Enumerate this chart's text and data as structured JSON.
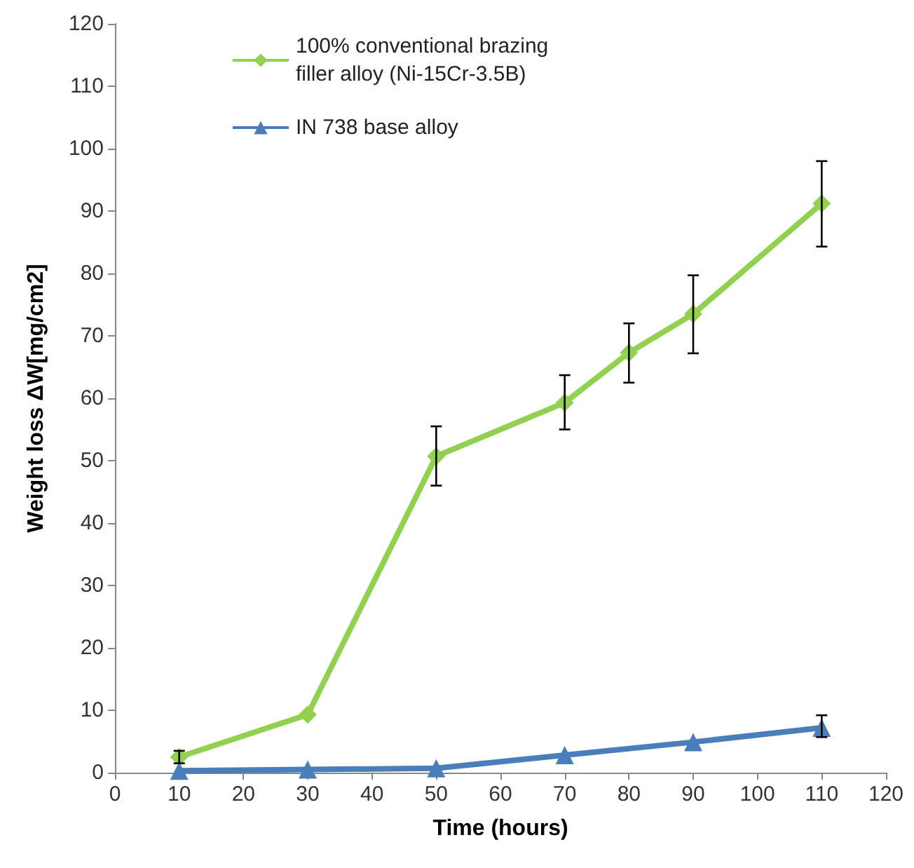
{
  "chart_data": {
    "type": "line",
    "xlabel": "Time (hours)",
    "ylabel": "Weight loss ΔW[mg/cm2]",
    "xlim": [
      0,
      120
    ],
    "xticks": [
      0,
      10,
      20,
      30,
      40,
      50,
      60,
      70,
      80,
      90,
      100,
      110,
      120
    ],
    "ylim": [
      0,
      120
    ],
    "yticks": [
      0,
      10,
      20,
      30,
      40,
      50,
      60,
      70,
      80,
      90,
      100,
      110,
      120
    ],
    "grid": false,
    "legend": "top left",
    "line_style": "solid",
    "series": [
      {
        "name": "100% conventional brazing filler alloy (Ni-15Cr-3.5B)",
        "color": "#92d050",
        "marker": "diamond",
        "x": [
          10,
          30,
          50,
          70,
          80,
          90,
          110
        ],
        "values": [
          2.5,
          9.3,
          50.7,
          59.3,
          67.3,
          73.5,
          91.2
        ],
        "errors": [
          1,
          null,
          [
            46,
            55.5
          ],
          [
            55,
            63.7
          ],
          [
            62.5,
            72
          ],
          [
            67.2,
            79.7
          ],
          [
            84.3,
            98
          ]
        ]
      },
      {
        "name": "IN 738 base alloy",
        "color": "#4a7ebb",
        "marker": "triangle",
        "x": [
          10,
          30,
          50,
          70,
          90,
          110
        ],
        "values": [
          0.3,
          0.5,
          0.7,
          2.8,
          4.9,
          7.2
        ],
        "errors": [
          null,
          null,
          null,
          null,
          null,
          [
            5.7,
            9.2
          ]
        ]
      }
    ]
  }
}
